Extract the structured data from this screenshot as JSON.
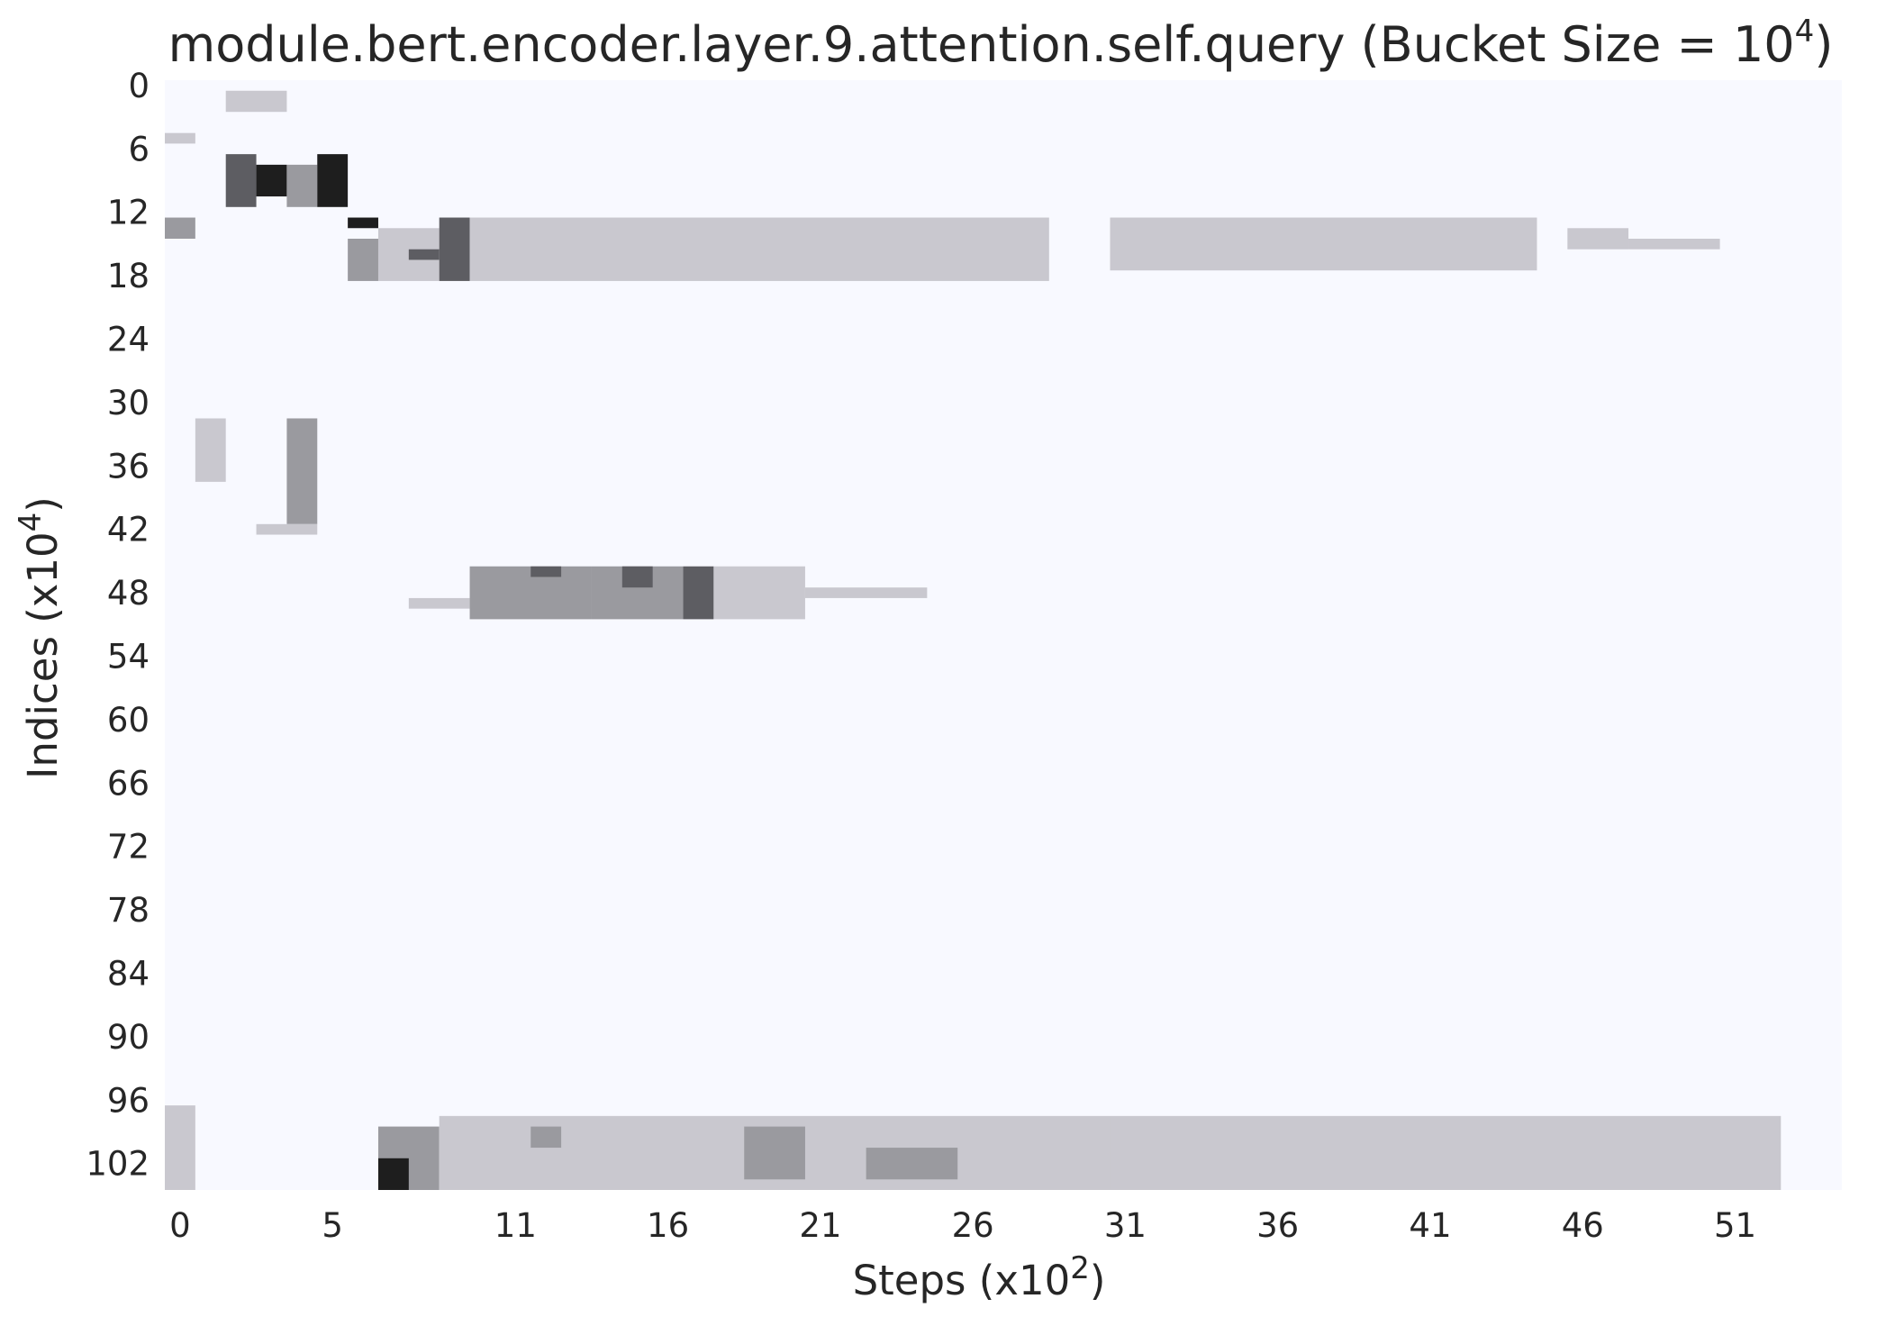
{
  "chart_data": {
    "type": "heatmap",
    "title": {
      "main": "module.bert.encoder.layer.9.attention.self.query (Bucket Size = 10",
      "sup": "4",
      "end": ")"
    },
    "xlabel": {
      "main": "Steps (x10",
      "sup": "2",
      "end": ")"
    },
    "ylabel": {
      "main": "Indices (x10",
      "sup": "4",
      "end": ")"
    },
    "x_ticks": [
      "0",
      "5",
      "11",
      "16",
      "21",
      "26",
      "31",
      "36",
      "41",
      "46",
      "51"
    ],
    "y_ticks": [
      "0",
      "6",
      "12",
      "18",
      "24",
      "30",
      "36",
      "42",
      "48",
      "54",
      "60",
      "66",
      "72",
      "78",
      "84",
      "90",
      "96",
      "102"
    ],
    "grid": false,
    "colormap": {
      "low": "#f8f9ff",
      "mid": "#c9c8cf",
      "high": "#1e1e1e"
    },
    "n_steps": 55,
    "n_indices": 105,
    "description_of_values": "relative intensity 0-4 per cell (0 = empty)",
    "blocks": [
      {
        "x": [
          2,
          4
        ],
        "y": [
          1,
          3
        ],
        "v": 1
      },
      {
        "x": [
          0,
          1
        ],
        "y": [
          5,
          6
        ],
        "v": 1
      },
      {
        "x": [
          2,
          3
        ],
        "y": [
          7,
          12
        ],
        "v": 3
      },
      {
        "x": [
          3,
          4
        ],
        "y": [
          8,
          11
        ],
        "v": 4
      },
      {
        "x": [
          4,
          5
        ],
        "y": [
          8,
          12
        ],
        "v": 2
      },
      {
        "x": [
          5,
          6
        ],
        "y": [
          7,
          12
        ],
        "v": 4
      },
      {
        "x": [
          6,
          7
        ],
        "y": [
          13,
          14
        ],
        "v": 4
      },
      {
        "x": [
          6,
          7
        ],
        "y": [
          15,
          19
        ],
        "v": 2
      },
      {
        "x": [
          7,
          9
        ],
        "y": [
          14,
          19
        ],
        "v": 1
      },
      {
        "x": [
          8,
          9
        ],
        "y": [
          16,
          17
        ],
        "v": 3
      },
      {
        "x": [
          9,
          10
        ],
        "y": [
          13,
          19
        ],
        "v": 3
      },
      {
        "x": [
          0,
          1
        ],
        "y": [
          13,
          15
        ],
        "v": 2
      },
      {
        "x": [
          10,
          29
        ],
        "y": [
          13,
          19
        ],
        "v": 1
      },
      {
        "x": [
          31,
          45
        ],
        "y": [
          13,
          18
        ],
        "v": 1
      },
      {
        "x": [
          46,
          48
        ],
        "y": [
          14,
          16
        ],
        "v": 1
      },
      {
        "x": [
          48,
          51
        ],
        "y": [
          15,
          16
        ],
        "v": 1
      },
      {
        "x": [
          1,
          2
        ],
        "y": [
          32,
          38
        ],
        "v": 1
      },
      {
        "x": [
          4,
          5
        ],
        "y": [
          32,
          42
        ],
        "v": 2
      },
      {
        "x": [
          3,
          5
        ],
        "y": [
          42,
          43
        ],
        "v": 1
      },
      {
        "x": [
          10,
          14
        ],
        "y": [
          46,
          51
        ],
        "v": 2
      },
      {
        "x": [
          12,
          13
        ],
        "y": [
          46,
          47
        ],
        "v": 3
      },
      {
        "x": [
          14,
          17
        ],
        "y": [
          46,
          51
        ],
        "v": 2
      },
      {
        "x": [
          15,
          16
        ],
        "y": [
          46,
          48
        ],
        "v": 3
      },
      {
        "x": [
          17,
          18
        ],
        "y": [
          46,
          51
        ],
        "v": 3
      },
      {
        "x": [
          18,
          21
        ],
        "y": [
          46,
          51
        ],
        "v": 1
      },
      {
        "x": [
          21,
          25
        ],
        "y": [
          48,
          49
        ],
        "v": 1
      },
      {
        "x": [
          8,
          10
        ],
        "y": [
          49,
          50
        ],
        "v": 1
      },
      {
        "x": [
          0,
          1
        ],
        "y": [
          97,
          105
        ],
        "v": 1
      },
      {
        "x": [
          7,
          9
        ],
        "y": [
          99,
          105
        ],
        "v": 2
      },
      {
        "x": [
          7,
          8
        ],
        "y": [
          102,
          105
        ],
        "v": 4
      },
      {
        "x": [
          9,
          31
        ],
        "y": [
          98,
          105
        ],
        "v": 1
      },
      {
        "x": [
          31,
          53
        ],
        "y": [
          98,
          105
        ],
        "v": 1
      },
      {
        "x": [
          19,
          21
        ],
        "y": [
          99,
          104
        ],
        "v": 2
      },
      {
        "x": [
          12,
          13
        ],
        "y": [
          99,
          101
        ],
        "v": 2
      },
      {
        "x": [
          23,
          26
        ],
        "y": [
          101,
          104
        ],
        "v": 2
      }
    ]
  }
}
